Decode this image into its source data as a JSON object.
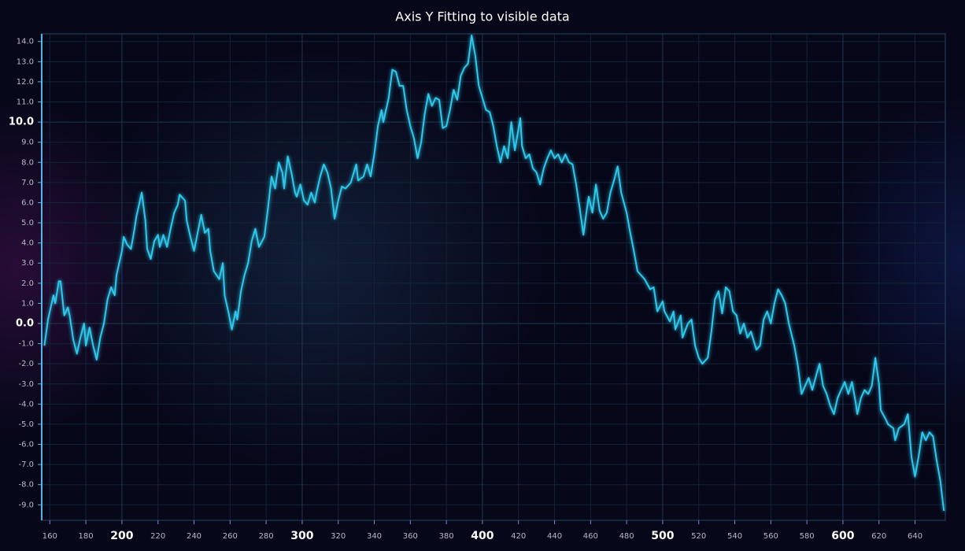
{
  "chart_data": {
    "type": "line",
    "title": "Axis Y Fitting to visible data",
    "color": "#2ec8ea",
    "grid": true,
    "xlim": [
      155.5,
      656.8
    ],
    "ylim": [
      -9.77,
      14.38
    ],
    "xticks": [
      160,
      180,
      200,
      220,
      240,
      260,
      280,
      300,
      320,
      340,
      360,
      380,
      400,
      420,
      440,
      460,
      480,
      500,
      520,
      540,
      560,
      580,
      600,
      620,
      640
    ],
    "yticks": [
      {
        "value": -9,
        "label": "-9.0"
      },
      {
        "value": -8,
        "label": "-8.0"
      },
      {
        "value": -7,
        "label": "-7.0"
      },
      {
        "value": -6,
        "label": "-6.0"
      },
      {
        "value": -5,
        "label": "-5.0"
      },
      {
        "value": -4,
        "label": "-4.0"
      },
      {
        "value": -3,
        "label": "-3.0"
      },
      {
        "value": -2,
        "label": "-2.0"
      },
      {
        "value": -1,
        "label": "-1.0"
      },
      {
        "value": 0,
        "label": "0.0"
      },
      {
        "value": 1,
        "label": "1.0"
      },
      {
        "value": 2,
        "label": "2.0"
      },
      {
        "value": 3,
        "label": "3.0"
      },
      {
        "value": 4,
        "label": "4.0"
      },
      {
        "value": 5,
        "label": "5.0"
      },
      {
        "value": 6,
        "label": "6.0"
      },
      {
        "value": 7,
        "label": "7.0"
      },
      {
        "value": 8,
        "label": "8.0"
      },
      {
        "value": 9,
        "label": "9.0"
      },
      {
        "value": 10,
        "label": "10.0"
      },
      {
        "value": 11,
        "label": "11.0"
      },
      {
        "value": 12,
        "label": "12.0"
      },
      {
        "value": 13,
        "label": "13.0"
      },
      {
        "value": 14,
        "label": "14.0"
      }
    ],
    "x": [
      157,
      159,
      162,
      163,
      165,
      166,
      168,
      170,
      171,
      173,
      175,
      177,
      179,
      180,
      182,
      184,
      186,
      188,
      190,
      192,
      194,
      196,
      197,
      200,
      201,
      203,
      205,
      207,
      208,
      211,
      213,
      214,
      216,
      218,
      220,
      221,
      223,
      225,
      227,
      229,
      231,
      232,
      235,
      236,
      238,
      240,
      242,
      244,
      246,
      248,
      249,
      251,
      254,
      256,
      257,
      259,
      261,
      263,
      264,
      266,
      268,
      270,
      272,
      274,
      276,
      279,
      281,
      283,
      285,
      287,
      289,
      290,
      292,
      294,
      296,
      297,
      299,
      301,
      303,
      305,
      307,
      308,
      310,
      312,
      314,
      316,
      318,
      320,
      322,
      324,
      327,
      330,
      331,
      334,
      336,
      338,
      340,
      342,
      344,
      345,
      348,
      350,
      352,
      354,
      356,
      358,
      360,
      362,
      364,
      366,
      368,
      370,
      372,
      374,
      376,
      378,
      380,
      382,
      384,
      386,
      388,
      390,
      392,
      394,
      396,
      398,
      400,
      402,
      404,
      406,
      408,
      410,
      412,
      414,
      416,
      418,
      421,
      422,
      424,
      426,
      428,
      430,
      432,
      434,
      436,
      438,
      440,
      442,
      444,
      446,
      448,
      450,
      452,
      454,
      456,
      458,
      459,
      461,
      463,
      465,
      467,
      469,
      471,
      473,
      475,
      477,
      480,
      482,
      484,
      486,
      488,
      490,
      493,
      495,
      497,
      500,
      501,
      504,
      506,
      507,
      510,
      511,
      514,
      516,
      518,
      520,
      522,
      525,
      527,
      529,
      531,
      533,
      535,
      537,
      539,
      541,
      543,
      545,
      547,
      549,
      552,
      554,
      556,
      558,
      560,
      562,
      564,
      566,
      568,
      570,
      573,
      575,
      577,
      579,
      581,
      583,
      586,
      587,
      589,
      591,
      593,
      595,
      597,
      599,
      601,
      603,
      605,
      607,
      608,
      610,
      612,
      614,
      616,
      618,
      620,
      621,
      624,
      625,
      628,
      629,
      631,
      634,
      636,
      638,
      640,
      642,
      644,
      646,
      648,
      650,
      652,
      654,
      656
    ],
    "values": [
      -1.1,
      0.2,
      1.4,
      1.0,
      2.1,
      2.1,
      0.4,
      0.8,
      0.4,
      -0.8,
      -1.5,
      -0.7,
      0.0,
      -1.1,
      -0.2,
      -1.1,
      -1.8,
      -0.7,
      0.0,
      1.2,
      1.8,
      1.4,
      2.4,
      3.6,
      4.3,
      3.9,
      3.7,
      4.7,
      5.3,
      6.5,
      5.1,
      3.7,
      3.2,
      4.1,
      4.4,
      3.8,
      4.4,
      3.8,
      4.7,
      5.5,
      5.9,
      6.4,
      6.1,
      5.1,
      4.3,
      3.6,
      4.5,
      5.4,
      4.5,
      4.7,
      3.6,
      2.6,
      2.2,
      3.0,
      1.4,
      0.6,
      -0.3,
      0.6,
      0.2,
      1.6,
      2.4,
      3.0,
      4.1,
      4.7,
      3.8,
      4.3,
      5.7,
      7.3,
      6.7,
      8.0,
      7.5,
      6.7,
      8.3,
      7.5,
      6.5,
      6.3,
      6.9,
      6.1,
      5.9,
      6.5,
      6.0,
      6.5,
      7.3,
      7.9,
      7.5,
      6.7,
      5.2,
      6.1,
      6.8,
      6.7,
      7.0,
      7.9,
      7.1,
      7.3,
      7.9,
      7.3,
      8.4,
      9.8,
      10.6,
      10.0,
      11.2,
      12.6,
      12.5,
      11.8,
      11.8,
      10.6,
      9.8,
      9.2,
      8.2,
      9.0,
      10.4,
      11.4,
      10.8,
      11.2,
      11.1,
      9.7,
      9.8,
      10.6,
      11.6,
      11.1,
      12.3,
      12.7,
      12.9,
      14.3,
      13.3,
      11.8,
      11.2,
      10.6,
      10.5,
      9.8,
      8.8,
      8.0,
      8.8,
      8.2,
      10.0,
      8.6,
      10.2,
      8.8,
      8.2,
      8.4,
      7.7,
      7.5,
      6.9,
      7.7,
      8.2,
      8.6,
      8.2,
      8.4,
      8.0,
      8.4,
      8.0,
      7.9,
      6.9,
      5.7,
      4.4,
      5.7,
      6.3,
      5.5,
      6.9,
      5.6,
      5.2,
      5.5,
      6.5,
      7.1,
      7.8,
      6.5,
      5.5,
      4.5,
      3.6,
      2.6,
      2.4,
      2.2,
      1.7,
      1.8,
      0.6,
      1.1,
      0.6,
      0.1,
      0.6,
      -0.3,
      0.4,
      -0.7,
      0.0,
      0.2,
      -1.1,
      -1.7,
      -2.0,
      -1.7,
      -0.4,
      1.2,
      1.6,
      0.5,
      1.8,
      1.6,
      0.6,
      0.4,
      -0.5,
      0.0,
      -0.7,
      -0.4,
      -1.3,
      -1.1,
      0.2,
      0.6,
      0.0,
      1.0,
      1.7,
      1.4,
      1.0,
      0.0,
      -1.1,
      -2.1,
      -3.5,
      -3.1,
      -2.7,
      -3.3,
      -2.3,
      -2.0,
      -3.1,
      -3.5,
      -4.1,
      -4.5,
      -3.7,
      -3.3,
      -2.9,
      -3.5,
      -2.9,
      -3.9,
      -4.5,
      -3.7,
      -3.3,
      -3.5,
      -3.1,
      -1.7,
      -3.0,
      -4.3,
      -4.8,
      -5.0,
      -5.2,
      -5.8,
      -5.2,
      -5.0,
      -4.5,
      -6.6,
      -7.6,
      -6.6,
      -5.4,
      -5.8,
      -5.4,
      -5.6,
      -6.8,
      -7.8,
      -9.3
    ]
  }
}
